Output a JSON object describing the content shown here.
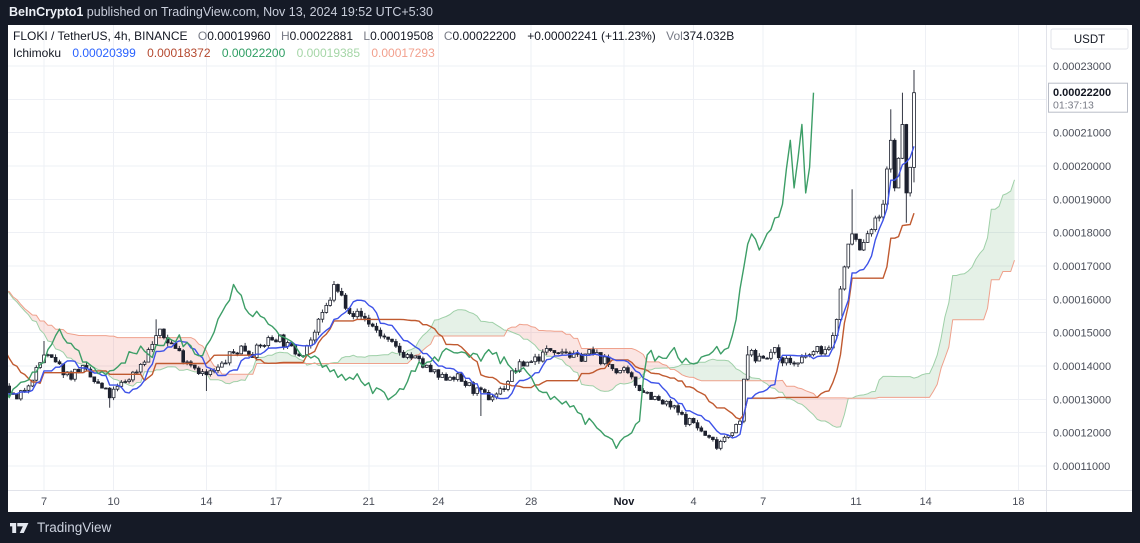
{
  "header": {
    "publisher": "BeInCrypto1",
    "publish_rest": " published on TradingView.com, Nov 13, 2024 19:52 UTC+5:30"
  },
  "symbol_row": {
    "title": "FLOKI / TetherUS, 4h, BINANCE",
    "fields": [
      {
        "k": "O",
        "v": "0.00019960"
      },
      {
        "k": "H",
        "v": "0.00022881"
      },
      {
        "k": "L",
        "v": "0.00019508"
      },
      {
        "k": "C",
        "v": "0.00022200"
      }
    ],
    "change": "+0.00002241 (+11.23%)",
    "vol_label": "Vol",
    "vol_value": "374.032",
    "vol_suffix": "B"
  },
  "indicator_row": {
    "name": "Ichimoku",
    "values": [
      {
        "text": "0.00020399",
        "role": "conversion-line",
        "color": "#2962FF"
      },
      {
        "text": "0.00018372",
        "role": "base-line",
        "color": "#B5492F"
      },
      {
        "text": "0.00022200",
        "role": "lagging-span",
        "color": "#2E9E63"
      },
      {
        "text": "0.00019385",
        "role": "lead-a",
        "color": "#A5D6A7"
      },
      {
        "text": "0.00017293",
        "role": "lead-b",
        "color": "#F2A08E"
      }
    ]
  },
  "price_axis": {
    "currency": "USDT",
    "last_price": "0.00022200",
    "last_price_value": 22.2,
    "countdown": "01:37:13",
    "ticks": [
      {
        "label": "0.00023000",
        "v": 23
      },
      {
        "label": "0.00022000",
        "v": 22
      },
      {
        "label": "0.00021000",
        "v": 21
      },
      {
        "label": "0.00020000",
        "v": 20
      },
      {
        "label": "0.00019000",
        "v": 19
      },
      {
        "label": "0.00018000",
        "v": 18
      },
      {
        "label": "0.00017000",
        "v": 17
      },
      {
        "label": "0.00016000",
        "v": 16
      },
      {
        "label": "0.00015000",
        "v": 15
      },
      {
        "label": "0.00014000",
        "v": 14
      },
      {
        "label": "0.00013000",
        "v": 13
      },
      {
        "label": "0.00012000",
        "v": 12
      },
      {
        "label": "0.00011000",
        "v": 11
      }
    ]
  },
  "time_axis": {
    "ticks": [
      {
        "label": "7",
        "day": 2
      },
      {
        "label": "10",
        "day": 5
      },
      {
        "label": "14",
        "day": 9
      },
      {
        "label": "17",
        "day": 12
      },
      {
        "label": "21",
        "day": 16
      },
      {
        "label": "24",
        "day": 19
      },
      {
        "label": "28",
        "day": 23
      },
      {
        "label": "Nov",
        "day": 27,
        "bold": true
      },
      {
        "label": "4",
        "day": 30
      },
      {
        "label": "7",
        "day": 33
      },
      {
        "label": "11",
        "day": 37
      },
      {
        "label": "14",
        "day": 40
      },
      {
        "label": "18",
        "day": 44
      }
    ]
  },
  "footer": {
    "brand": "TradingView"
  },
  "chart_data": {
    "type": "candlestick",
    "symbol": "FLOKI / TetherUS",
    "interval": "4h",
    "exchange": "BINANCE",
    "overlay_indicator": "Ichimoku Cloud",
    "price_unit": 1e-05,
    "bars_per_day": 6,
    "ohlc_display": {
      "open": "0.00019960",
      "high": "0.00022881",
      "low": "0.00019508",
      "close": "0.00022200",
      "change": "+0.00002241 (+11.23%)",
      "volume": "374.032B"
    },
    "ichimoku_values": {
      "conversion": 0.00020399,
      "base": 0.00018372,
      "lagging": 0.000222,
      "lead_a": 0.00019385,
      "lead_b": 0.00017293
    },
    "y_axis": {
      "min_visible": 10.6,
      "max_visible": 23.8,
      "grid_step": 1
    },
    "x_axis": {
      "day0_date": "Oct 5, 2024",
      "last_bar_day": 39.5,
      "cloud_extends_to_day": 43.8
    },
    "prehistory_path": [
      [
        -13,
        15.2
      ],
      [
        -12,
        15.9
      ],
      [
        -11,
        16.4
      ],
      [
        -10,
        16.8
      ],
      [
        -9,
        16.5
      ],
      [
        -8,
        16.9
      ],
      [
        -7,
        16.3
      ],
      [
        -6,
        15.7
      ],
      [
        -5.2,
        16.5
      ],
      [
        -4.5,
        16.7
      ],
      [
        -4,
        15.9
      ],
      [
        -3.4,
        14.8
      ],
      [
        -2.8,
        14.1
      ],
      [
        -2.2,
        13.6
      ],
      [
        -1.6,
        13.2
      ],
      [
        -1,
        12.9
      ],
      [
        -0.5,
        13.1
      ],
      [
        0,
        13.2
      ]
    ],
    "price_path": [
      [
        0.45,
        13.3
      ],
      [
        0.8,
        12.9
      ],
      [
        1.3,
        13.5
      ],
      [
        1.7,
        13.9
      ],
      [
        2,
        14.35
      ],
      [
        2.6,
        14.0
      ],
      [
        3.1,
        13.7
      ],
      [
        3.6,
        13.95
      ],
      [
        4.2,
        13.5
      ],
      [
        4.85,
        13.1
      ],
      [
        5.4,
        13.5
      ],
      [
        5.9,
        13.8
      ],
      [
        6.4,
        14.3
      ],
      [
        6.9,
        15.0
      ],
      [
        7.4,
        14.75
      ],
      [
        7.95,
        14.3
      ],
      [
        8.5,
        14.0
      ],
      [
        8.95,
        13.7
      ],
      [
        9.5,
        13.9
      ],
      [
        10,
        14.3
      ],
      [
        10.5,
        14.55
      ],
      [
        11.05,
        14.4
      ],
      [
        11.6,
        14.75
      ],
      [
        12.1,
        14.9
      ],
      [
        12.6,
        14.5
      ],
      [
        13.1,
        14.4
      ],
      [
        13.6,
        14.9
      ],
      [
        14.2,
        15.8
      ],
      [
        14.5,
        16.35
      ],
      [
        14.8,
        16.1
      ],
      [
        15.3,
        15.6
      ],
      [
        15.8,
        15.45
      ],
      [
        16.3,
        15.1
      ],
      [
        16.9,
        14.65
      ],
      [
        17.4,
        14.4
      ],
      [
        17.9,
        14.25
      ],
      [
        18.55,
        13.9
      ],
      [
        19.1,
        13.6
      ],
      [
        19.6,
        13.75
      ],
      [
        20.1,
        13.5
      ],
      [
        20.7,
        13.2
      ],
      [
        21.2,
        13.05
      ],
      [
        21.75,
        13.3
      ],
      [
        22.3,
        13.9
      ],
      [
        22.9,
        14.15
      ],
      [
        23.4,
        14.3
      ],
      [
        23.9,
        14.55
      ],
      [
        24.4,
        14.5
      ],
      [
        24.9,
        14.2
      ],
      [
        25.45,
        14.4
      ],
      [
        25.95,
        14.25
      ],
      [
        26.5,
        13.95
      ],
      [
        27,
        13.8
      ],
      [
        27.5,
        13.45
      ],
      [
        28,
        13.2
      ],
      [
        28.55,
        12.9
      ],
      [
        29.1,
        12.75
      ],
      [
        29.6,
        12.4
      ],
      [
        30,
        12.3
      ],
      [
        30.5,
        11.9
      ],
      [
        31,
        11.65
      ],
      [
        31.35,
        11.9
      ],
      [
        31.75,
        12.15
      ],
      [
        32.05,
        12.3
      ],
      [
        32.25,
        14.5
      ],
      [
        32.65,
        14.2
      ],
      [
        33,
        14.35
      ],
      [
        33.5,
        14.4
      ],
      [
        34,
        14.15
      ],
      [
        34.5,
        14.05
      ],
      [
        35,
        14.35
      ],
      [
        35.5,
        14.5
      ],
      [
        35.9,
        14.45
      ],
      [
        36.1,
        15.2
      ],
      [
        36.4,
        16.6
      ],
      [
        36.66,
        17.6
      ],
      [
        36.88,
        18.0
      ],
      [
        37.2,
        17.4
      ],
      [
        37.5,
        18.0
      ],
      [
        37.85,
        18.3
      ],
      [
        38.2,
        19.0
      ],
      [
        38.45,
        20.9
      ],
      [
        38.7,
        19.3
      ],
      [
        39.0,
        21.1
      ],
      [
        39.2,
        18.8
      ],
      [
        39.35,
        19.96
      ],
      [
        39.5,
        22.2
      ]
    ],
    "wick_events": [
      {
        "day": 2.0,
        "high": 14.75
      },
      {
        "day": 4.85,
        "low": 12.75
      },
      {
        "day": 6.9,
        "high": 15.4
      },
      {
        "day": 8.95,
        "low": 13.25
      },
      {
        "day": 14.5,
        "high": 16.55
      },
      {
        "day": 20.75,
        "low": 12.5
      },
      {
        "day": 31.0,
        "low": 11.48
      },
      {
        "day": 32.25,
        "high": 14.6
      },
      {
        "day": 36.9,
        "high": 19.3
      },
      {
        "day": 38.45,
        "high": 21.7
      },
      {
        "day": 39.0,
        "high": 22.2
      },
      {
        "day": 39.17,
        "low": 18.3
      }
    ],
    "last_candle": {
      "open": 19.96,
      "high": 22.881,
      "low": 19.508,
      "close": 22.2
    },
    "colors": {
      "frame_bg": "#151a26",
      "pane_bg": "#ffffff",
      "grid": "#eef0f5",
      "axis_text": "#4a4e59",
      "axis_border": "#e1e3ea",
      "candle_up": "#ffffff",
      "candle_down": "#1d212e",
      "candle_border": "#1d212e",
      "tenkan": "#3d52e8",
      "kijun": "#c05a30",
      "chikou": "#3d9e67",
      "lead_a_line": "#9fd0a8",
      "lead_b_line": "#efa18c",
      "cloud_green": "rgba(96,169,107,0.16)",
      "cloud_red": "rgba(231,109,99,0.18)"
    }
  }
}
